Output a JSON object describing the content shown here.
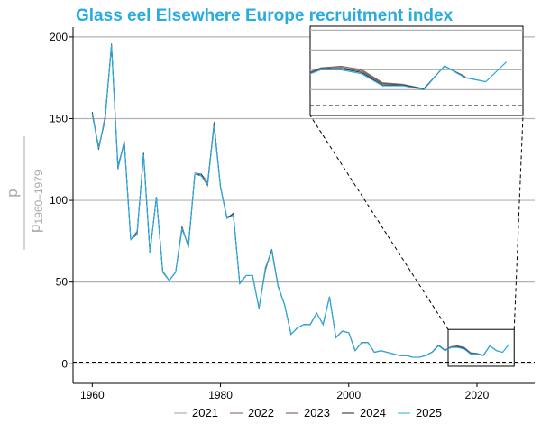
{
  "chart_data": {
    "type": "line",
    "title": "Glass eel Elsewhere Europe recruitment index",
    "ylabel": {
      "numerator": "p",
      "denominator_main": "p",
      "denominator_sub": "1960–1979"
    },
    "xlim": [
      1957,
      2029
    ],
    "ylim": [
      -12,
      206
    ],
    "x_ticks": [
      1960,
      1980,
      2000,
      2020
    ],
    "y_ticks": [
      0,
      50,
      100,
      150,
      200
    ],
    "reference_line": 1,
    "grid": "horizontal",
    "legend_position": "bottom",
    "colors": {
      "title": "#29abe2",
      "grid": "#b3b3b3",
      "2021": "#a0a0a0",
      "2022": "#7a5a5a",
      "2023": "#6a4a4a",
      "2024": "#222222",
      "2025": "#29abe2"
    },
    "years": [
      1960,
      1961,
      1962,
      1963,
      1964,
      1965,
      1966,
      1967,
      1968,
      1969,
      1970,
      1971,
      1972,
      1973,
      1974,
      1975,
      1976,
      1977,
      1978,
      1979,
      1980,
      1981,
      1982,
      1983,
      1984,
      1985,
      1986,
      1987,
      1988,
      1989,
      1990,
      1991,
      1992,
      1993,
      1994,
      1995,
      1996,
      1997,
      1998,
      1999,
      2000,
      2001,
      2002,
      2003,
      2004,
      2005,
      2006,
      2007,
      2008,
      2009,
      2010,
      2011,
      2012,
      2013,
      2014,
      2015,
      2016,
      2017,
      2018,
      2019,
      2020,
      2021,
      2022,
      2023,
      2024,
      2025
    ],
    "base_values": [
      153,
      132,
      150,
      195,
      120,
      135,
      76,
      80,
      128,
      68,
      102,
      56,
      51,
      56,
      83,
      72,
      116,
      115,
      110,
      146,
      108,
      89,
      91,
      49,
      54,
      54,
      34,
      58,
      69,
      47,
      36,
      18,
      22,
      24,
      24,
      31,
      24,
      41,
      16,
      20,
      19,
      8,
      13,
      13,
      7,
      8,
      7,
      6,
      5,
      5,
      4,
      4,
      5,
      7,
      11,
      8,
      10,
      10,
      9,
      6,
      6,
      5,
      11,
      8,
      7,
      12
    ],
    "inset": {
      "x_range": [
        2015.5,
        2025.8
      ],
      "y_range": [
        -1.5,
        21
      ]
    },
    "series": [
      {
        "name": "2021",
        "last_year": 2021,
        "offsets": [
          1,
          -1,
          2,
          0,
          2,
          -1,
          0,
          1,
          0,
          0,
          0,
          1,
          0,
          0,
          1,
          0,
          1,
          1,
          2,
          1,
          1,
          0,
          0,
          1,
          0,
          0,
          0,
          0,
          0,
          1,
          0,
          0,
          0,
          0,
          0,
          0,
          0,
          0,
          0,
          0,
          0,
          0,
          0,
          0,
          0,
          0,
          0,
          0,
          0,
          0,
          0,
          0,
          0,
          0.3,
          0.5,
          0.3,
          0.4,
          0.9,
          1.1,
          0.8,
          0.4,
          0.2
        ]
      },
      {
        "name": "2022",
        "last_year": 2022,
        "offsets": [
          -1,
          1,
          -1,
          1,
          -1,
          1,
          0,
          -1,
          1,
          0,
          0,
          0,
          0,
          0,
          -1,
          1,
          0,
          0,
          -1,
          2,
          0,
          1,
          0,
          0,
          0,
          0,
          0,
          1,
          0,
          0,
          0,
          0,
          0,
          0,
          0,
          0,
          0,
          0,
          0,
          0,
          0,
          0,
          0,
          0,
          0,
          0,
          0,
          0,
          0,
          0,
          0,
          0,
          0,
          0.2,
          0.4,
          0.4,
          0.5,
          0.9,
          0.9,
          0.7,
          0.3,
          0.3,
          -0.1
        ]
      },
      {
        "name": "2023",
        "last_year": 2023,
        "offsets": [
          0,
          -1,
          1,
          -1,
          1,
          0,
          0,
          1,
          -1,
          0,
          0,
          0,
          0,
          0,
          1,
          -1,
          0,
          0,
          1,
          -1,
          0,
          0,
          1,
          0,
          0,
          0,
          0,
          -1,
          1,
          0,
          0,
          0,
          0,
          0,
          0,
          0,
          0,
          0,
          0,
          0,
          0,
          0,
          0,
          0,
          0,
          0,
          0,
          0,
          0,
          0,
          0,
          0,
          0,
          0.1,
          0.2,
          0.2,
          0.3,
          0.6,
          0.6,
          0.5,
          0.2,
          0.2,
          0,
          0.3
        ]
      },
      {
        "name": "2024",
        "last_year": 2024,
        "offsets": [
          1,
          0,
          -1,
          0,
          0,
          1,
          0,
          0,
          1,
          0,
          0,
          0,
          0,
          0,
          0,
          0,
          0,
          1,
          0,
          1,
          0,
          0,
          1,
          0,
          0,
          0,
          0,
          0,
          1,
          0,
          0,
          0,
          0,
          0,
          0,
          0,
          0,
          0,
          0,
          0,
          0,
          0,
          0,
          0,
          0,
          0,
          0,
          0,
          0,
          0,
          0,
          0,
          0,
          0.1,
          0.1,
          0.1,
          0.1,
          0.3,
          0.3,
          0.2,
          0.1,
          0.1,
          0,
          0.1,
          0
        ]
      },
      {
        "name": "2025",
        "last_year": 2025,
        "offsets": []
      }
    ]
  }
}
